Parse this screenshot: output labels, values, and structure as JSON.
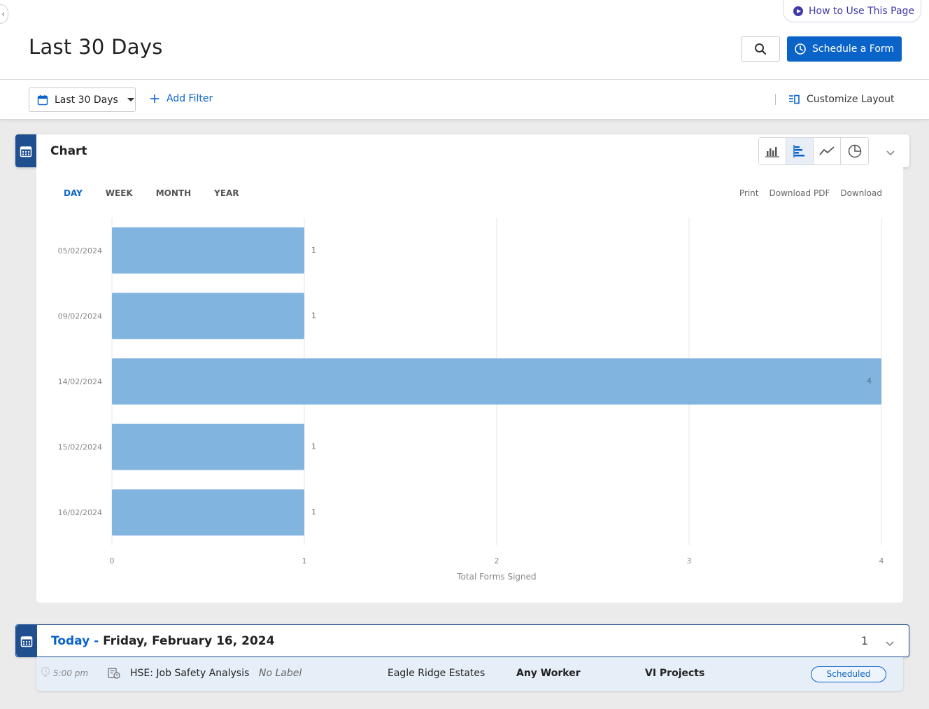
{
  "help": {
    "how_to_label": "How to Use This Page"
  },
  "header": {
    "title": "Last 30 Days",
    "schedule_label": "Schedule a Form"
  },
  "filters": {
    "date_range": "Last 30 Days",
    "add_filter": "Add Filter",
    "customize": "Customize Layout"
  },
  "chart_panel": {
    "title": "Chart",
    "chart_types": [
      "bar-chart-icon",
      "horizontal-bar-chart-icon",
      "line-chart-icon",
      "pie-chart-icon"
    ],
    "active_type": "horizontal-bar-chart-icon",
    "periods": [
      "DAY",
      "WEEK",
      "MONTH",
      "YEAR"
    ],
    "active_period": "DAY",
    "exports": [
      "Print",
      "Download PDF",
      "Download"
    ]
  },
  "chart_data": {
    "type": "bar",
    "orientation": "horizontal",
    "categories": [
      "05/02/2024",
      "09/02/2024",
      "14/02/2024",
      "15/02/2024",
      "16/02/2024"
    ],
    "values": [
      1,
      1,
      4,
      1,
      1
    ],
    "xlabel": "Total Forms Signed",
    "xticks": [
      "0",
      "1",
      "2",
      "3",
      "4"
    ],
    "xlim": [
      0,
      4
    ],
    "grid": true,
    "bar_color": "#82b4e0"
  },
  "today": {
    "prefix": "Today -",
    "date": "Friday, February 16, 2024",
    "count": "1"
  },
  "task": {
    "time": "5:00 pm",
    "form": "HSE: Job Safety Analysis",
    "label": "No Label",
    "site": "Eagle Ridge Estates",
    "worker": "Any Worker",
    "project": "VI Projects",
    "status": "Scheduled"
  },
  "colors": {
    "primary": "#0a63c9",
    "tab": "#1f4f8f",
    "accent_purple": "#3f3aa8"
  }
}
